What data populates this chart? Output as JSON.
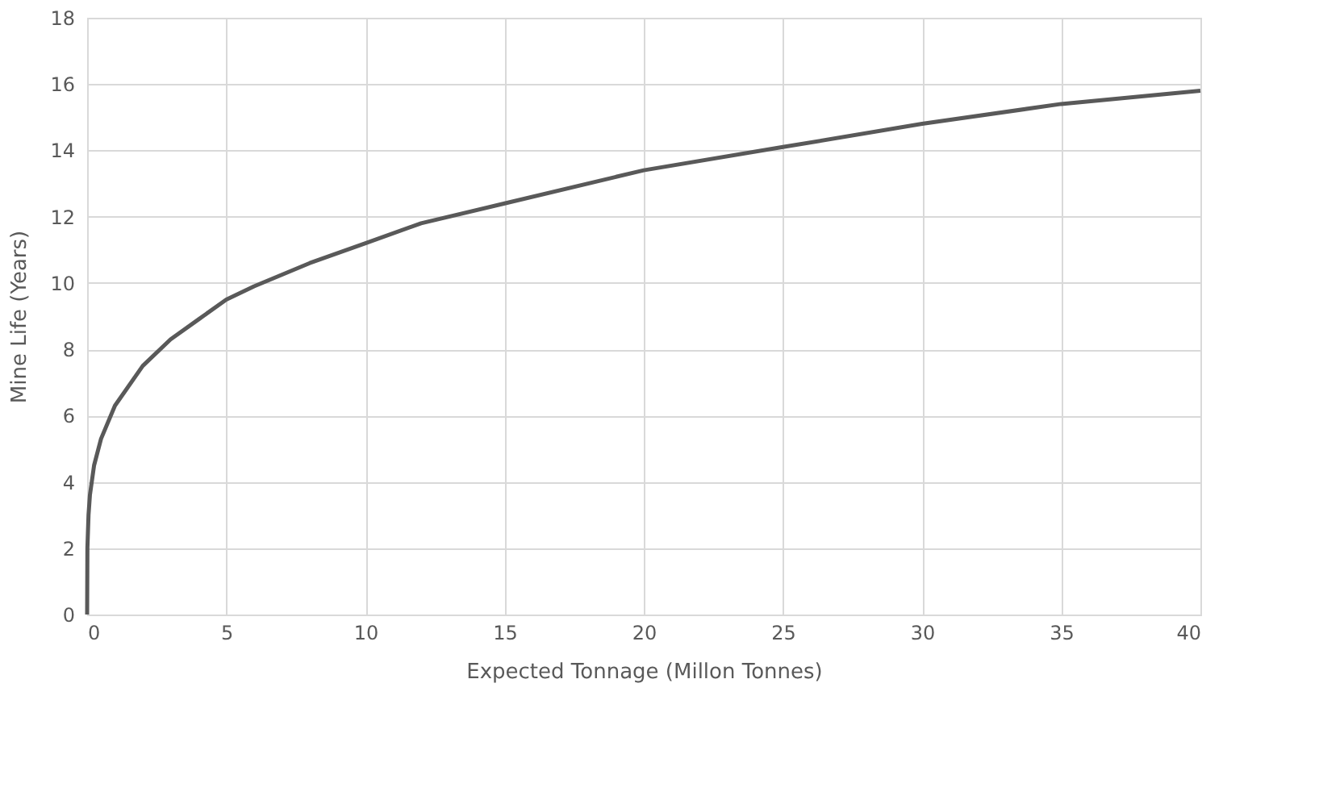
{
  "chart_data": {
    "type": "line",
    "xlabel": "Expected  Tonnage (Millon Tonnes)",
    "ylabel": "Mine Life (Years)",
    "x": [
      0,
      0.01,
      0.05,
      0.1,
      0.25,
      0.5,
      1,
      2,
      3,
      4,
      5,
      6,
      8,
      10,
      12,
      15,
      20,
      25,
      30,
      35,
      40
    ],
    "series": [
      {
        "color": "#595959",
        "values": [
          0,
          2.0,
          3.0,
          3.6,
          4.5,
          5.3,
          6.3,
          7.5,
          8.3,
          8.9,
          9.5,
          9.9,
          10.6,
          11.2,
          11.8,
          12.4,
          13.4,
          14.1,
          14.8,
          15.4,
          15.8
        ]
      }
    ],
    "xlim": [
      0,
      40
    ],
    "xticks": [
      0,
      5,
      10,
      15,
      20,
      25,
      30,
      35,
      40
    ],
    "ylim": [
      0,
      18
    ],
    "yticks": [
      0,
      2,
      4,
      6,
      8,
      10,
      12,
      14,
      16,
      18
    ],
    "grid": true,
    "marker": "none",
    "line_style": "solid"
  }
}
